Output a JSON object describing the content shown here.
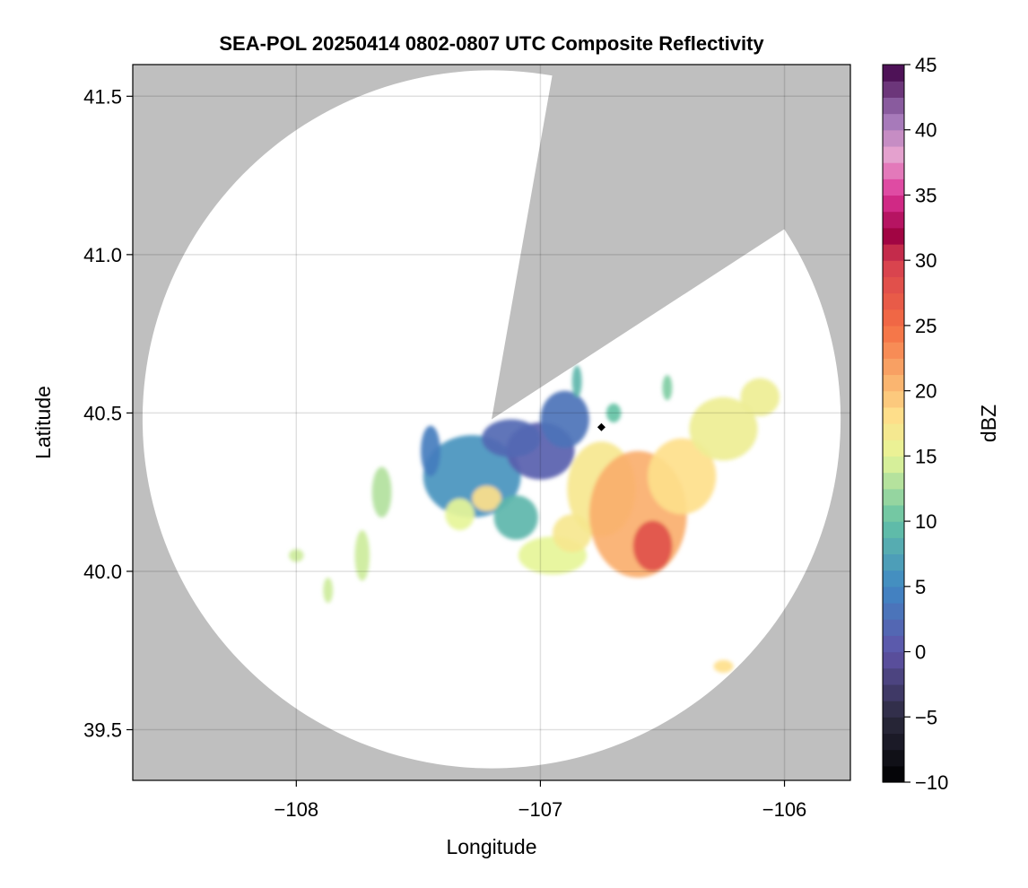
{
  "chart_data": {
    "type": "heatmap",
    "title": "SEA-POL 20250414 0802-0807 UTC Composite Reflectivity",
    "xlabel": "Longitude",
    "ylabel": "Latitude",
    "xlim": [
      -108.67,
      -105.73
    ],
    "ylim": [
      39.34,
      41.6
    ],
    "x_ticks": [
      -108,
      -107,
      -106
    ],
    "x_tick_labels": [
      "−108",
      "−107",
      "−106"
    ],
    "y_ticks": [
      39.5,
      40.0,
      40.5,
      41.0,
      41.5
    ],
    "y_tick_labels": [
      "39.5",
      "40.0",
      "40.5",
      "41.0",
      "41.5"
    ],
    "grid": true,
    "background_color": "#bfbfbf",
    "radar_site": {
      "lon": -107.2,
      "lat": 40.48
    },
    "radar_range_deg_lon": 1.43,
    "blocked_sector_bearing_deg": [
      10,
      57
    ],
    "marker": {
      "lon": -106.75,
      "lat": 40.455,
      "shape": "diamond",
      "color": "#000000"
    },
    "colorbar": {
      "label": "dBZ",
      "range": [
        -10,
        45
      ],
      "ticks": [
        -10,
        -5,
        0,
        5,
        10,
        15,
        20,
        25,
        30,
        35,
        40,
        45
      ],
      "tick_labels": [
        "−10",
        "−5",
        "0",
        "5",
        "10",
        "15",
        "20",
        "25",
        "30",
        "35",
        "40",
        "45"
      ],
      "colormap_stops": [
        {
          "value": -10,
          "color": "#000000"
        },
        {
          "value": -5,
          "color": "#2b2a3e"
        },
        {
          "value": 0,
          "color": "#5f53a8"
        },
        {
          "value": 5,
          "color": "#3f88c4"
        },
        {
          "value": 10,
          "color": "#64c2a5"
        },
        {
          "value": 15,
          "color": "#e6f598"
        },
        {
          "value": 18,
          "color": "#fee08b"
        },
        {
          "value": 25,
          "color": "#f46d43"
        },
        {
          "value": 30,
          "color": "#d53e4f"
        },
        {
          "value": 32,
          "color": "#9e0142"
        },
        {
          "value": 35,
          "color": "#dd3497"
        },
        {
          "value": 38,
          "color": "#e7a3cf"
        },
        {
          "value": 41,
          "color": "#9e74b7"
        },
        {
          "value": 45,
          "color": "#3f0045"
        }
      ]
    },
    "echo_cells": [
      {
        "lon": -107.28,
        "lat": 40.3,
        "rx": 0.2,
        "ry": 0.13,
        "dbz": 6
      },
      {
        "lon": -107.0,
        "lat": 40.38,
        "rx": 0.14,
        "ry": 0.09,
        "dbz": 1
      },
      {
        "lon": -107.12,
        "lat": 40.42,
        "rx": 0.12,
        "ry": 0.06,
        "dbz": 2
      },
      {
        "lon": -106.9,
        "lat": 40.48,
        "rx": 0.1,
        "ry": 0.09,
        "dbz": 3
      },
      {
        "lon": -107.22,
        "lat": 40.23,
        "rx": 0.06,
        "ry": 0.04,
        "dbz": 18
      },
      {
        "lon": -107.33,
        "lat": 40.18,
        "rx": 0.06,
        "ry": 0.05,
        "dbz": 15
      },
      {
        "lon": -106.75,
        "lat": 40.26,
        "rx": 0.14,
        "ry": 0.15,
        "dbz": 17
      },
      {
        "lon": -106.6,
        "lat": 40.18,
        "rx": 0.2,
        "ry": 0.2,
        "dbz": 21
      },
      {
        "lon": -106.54,
        "lat": 40.08,
        "rx": 0.08,
        "ry": 0.08,
        "dbz": 28
      },
      {
        "lon": -106.42,
        "lat": 40.3,
        "rx": 0.14,
        "ry": 0.12,
        "dbz": 18
      },
      {
        "lon": -106.25,
        "lat": 40.45,
        "rx": 0.14,
        "ry": 0.1,
        "dbz": 16
      },
      {
        "lon": -106.1,
        "lat": 40.55,
        "rx": 0.08,
        "ry": 0.06,
        "dbz": 16
      },
      {
        "lon": -106.95,
        "lat": 40.05,
        "rx": 0.14,
        "ry": 0.06,
        "dbz": 15
      },
      {
        "lon": -106.87,
        "lat": 40.12,
        "rx": 0.08,
        "ry": 0.06,
        "dbz": 17
      },
      {
        "lon": -107.65,
        "lat": 40.25,
        "rx": 0.04,
        "ry": 0.08,
        "dbz": 13
      },
      {
        "lon": -107.73,
        "lat": 40.05,
        "rx": 0.03,
        "ry": 0.08,
        "dbz": 14
      },
      {
        "lon": -107.87,
        "lat": 39.94,
        "rx": 0.02,
        "ry": 0.04,
        "dbz": 14
      },
      {
        "lon": -108.0,
        "lat": 40.05,
        "rx": 0.03,
        "ry": 0.02,
        "dbz": 14
      },
      {
        "lon": -106.25,
        "lat": 39.7,
        "rx": 0.04,
        "ry": 0.02,
        "dbz": 18
      },
      {
        "lon": -106.48,
        "lat": 40.58,
        "rx": 0.02,
        "ry": 0.04,
        "dbz": 11
      },
      {
        "lon": -106.85,
        "lat": 40.6,
        "rx": 0.02,
        "ry": 0.05,
        "dbz": 9
      },
      {
        "lon": -106.7,
        "lat": 40.5,
        "rx": 0.03,
        "ry": 0.03,
        "dbz": 10
      },
      {
        "lon": -107.45,
        "lat": 40.38,
        "rx": 0.04,
        "ry": 0.08,
        "dbz": 4
      },
      {
        "lon": -107.1,
        "lat": 40.17,
        "rx": 0.09,
        "ry": 0.07,
        "dbz": 9
      }
    ]
  }
}
